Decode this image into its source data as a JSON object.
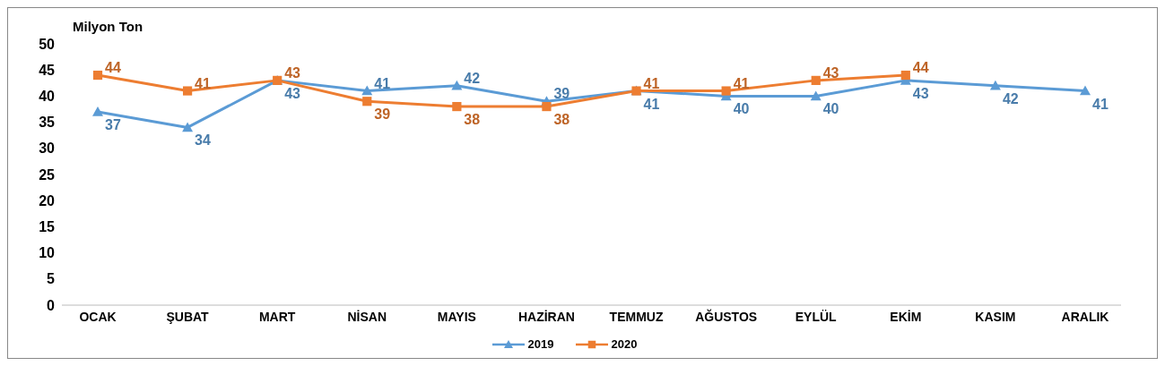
{
  "chart_data": {
    "type": "line",
    "ylabel": "Milyon Ton",
    "categories": [
      "OCAK",
      "ŞUBAT",
      "MART",
      "NİSAN",
      "MAYIS",
      "HAZİRAN",
      "TEMMUZ",
      "AĞUSTOS",
      "EYLÜL",
      "EKİM",
      "KASIM",
      "ARALIK"
    ],
    "series": [
      {
        "name": "2019",
        "color": "#5b9bd5",
        "marker": "triangle",
        "values": [
          37,
          34,
          43,
          41,
          42,
          39,
          41,
          40,
          40,
          43,
          42,
          41
        ]
      },
      {
        "name": "2020",
        "color": "#ed7d31",
        "marker": "square",
        "values": [
          44,
          41,
          43,
          39,
          38,
          38,
          41,
          41,
          43,
          44,
          null,
          null
        ]
      }
    ],
    "ylim": [
      0,
      50
    ],
    "yticks": [
      0,
      5,
      10,
      15,
      20,
      25,
      30,
      35,
      40,
      45,
      50
    ],
    "grid": false,
    "legend": "bottom",
    "data_labels": true,
    "line_style": "solid"
  }
}
